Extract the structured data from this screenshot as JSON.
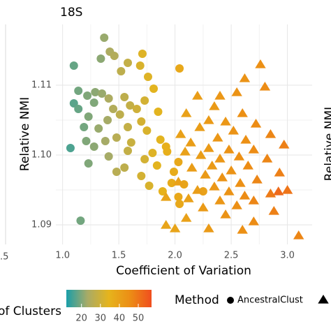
{
  "chart_data": {
    "type": "scatter",
    "title": "18S",
    "x_label": "Coefficient of Variation",
    "y_label": "Relative NMI",
    "xlim": [
      0.94,
      3.22
    ],
    "ylim": [
      1.0872,
      1.1187
    ],
    "xticks": [
      {
        "value": 1,
        "label": "1.0"
      },
      1.5,
      {
        "value": 2,
        "label": "2.0"
      },
      2.5,
      {
        "value": 3,
        "label": "3.0"
      }
    ],
    "yticks": [
      1.09,
      {
        "value": 1.1,
        "label": "1.10"
      },
      1.11
    ],
    "grid": true,
    "color_label": "of Clusters",
    "colorlim": [
      12,
      57
    ],
    "colorticks": [
      20,
      30,
      40,
      50
    ],
    "colormap": [
      "#1a9ea9",
      "#a9ab66",
      "#e6b41c",
      "#ec8d15",
      "#f04e1f"
    ],
    "legend_title": "Method",
    "left_panel_tick": ".5",
    "right_panel_label": "Relative NMI",
    "series": [
      {
        "name": "AncestralClust",
        "marker": "circle",
        "x": [
          1.37,
          1.42,
          1.46,
          1.71,
          1.69,
          1.1,
          1.34,
          1.58,
          1.52,
          1.76,
          2.04,
          1.81,
          1.14,
          1.29,
          1.35,
          1.22,
          1.41,
          1.55,
          1.6,
          1.73,
          1.1,
          1.14,
          1.28,
          1.45,
          1.66,
          1.85,
          1.51,
          1.23,
          1.4,
          1.7,
          1.19,
          1.32,
          1.58,
          1.75,
          1.48,
          1.21,
          1.38,
          1.87,
          1.61,
          1.07,
          1.28,
          1.58,
          1.93,
          1.41,
          1.73,
          1.23,
          1.55,
          1.84,
          2.03,
          1.99,
          1.7,
          1.48,
          1.97,
          1.77,
          2.08,
          1.89,
          2.03,
          2.25,
          2.04,
          1.16,
          1.92,
          1.8
        ],
        "y": [
          1.1168,
          1.1148,
          1.1142,
          1.1145,
          1.1128,
          1.1128,
          1.1138,
          1.1132,
          1.112,
          1.1112,
          1.1124,
          1.1095,
          1.1092,
          1.109,
          1.1088,
          1.1085,
          1.1081,
          1.1083,
          1.1071,
          1.1078,
          1.1074,
          1.1066,
          1.1075,
          1.1066,
          1.1066,
          1.1062,
          1.1058,
          1.1055,
          1.105,
          1.1048,
          1.104,
          1.1038,
          1.104,
          1.1035,
          1.1025,
          1.102,
          1.102,
          1.1022,
          1.1018,
          1.101,
          1.1012,
          1.1006,
          1.1005,
          1.0998,
          1.0994,
          1.0988,
          1.0982,
          1.0985,
          1.099,
          1.0976,
          1.097,
          1.0976,
          1.096,
          1.0956,
          1.0958,
          1.0948,
          1.094,
          1.0948,
          1.093,
          1.0906,
          1.1012,
          1.1003
        ],
        "clusters": [
          22,
          24,
          25,
          33,
          32,
          18,
          21,
          28,
          27,
          33,
          38,
          34,
          19,
          21,
          22,
          20,
          24,
          27,
          28,
          31,
          17,
          18,
          20,
          25,
          30,
          34,
          27,
          20,
          23,
          31,
          19,
          22,
          28,
          32,
          26,
          20,
          23,
          34,
          29,
          16,
          21,
          28,
          36,
          23,
          31,
          20,
          27,
          34,
          38,
          37,
          31,
          26,
          37,
          32,
          39,
          35,
          38,
          40,
          38,
          19,
          36,
          33
        ]
      },
      {
        "marker": "triangle",
        "x": [
          2.76,
          2.62,
          2.8,
          2.2,
          2.55,
          2.4,
          2.35,
          2.1,
          2.6,
          2.3,
          2.45,
          2.72,
          2.22,
          2.52,
          2.85,
          2.05,
          2.38,
          2.63,
          2.14,
          2.97,
          2.3,
          2.48,
          2.7,
          2.09,
          2.23,
          2.57,
          2.4,
          2.82,
          2.33,
          2.65,
          2.15,
          2.5,
          2.93,
          2.27,
          2.42,
          2.73,
          2.03,
          2.58,
          2.35,
          3.0,
          2.2,
          2.48,
          2.85,
          2.62,
          1.92,
          2.12,
          2.4,
          2.7,
          2.55,
          2.25,
          2.88,
          2.45,
          2.1,
          2.7,
          1.92,
          2.3,
          2.6,
          3.1,
          2.0,
          2.92
        ],
        "y": [
          1.113,
          1.111,
          1.1098,
          1.1085,
          1.109,
          1.1085,
          1.107,
          1.106,
          1.106,
          1.105,
          1.1048,
          1.1045,
          1.104,
          1.1035,
          1.103,
          1.103,
          1.1025,
          1.1022,
          1.1018,
          1.1015,
          1.101,
          1.1008,
          1.1008,
          1.1005,
          1.1,
          1.0998,
          1.0995,
          1.0995,
          1.0985,
          1.0985,
          1.0982,
          1.0978,
          1.0975,
          1.0972,
          1.0968,
          1.0965,
          1.0962,
          1.096,
          1.0955,
          1.095,
          1.095,
          1.0948,
          1.0945,
          1.0942,
          1.094,
          1.0938,
          1.0935,
          1.0935,
          1.0928,
          1.0925,
          1.092,
          1.0915,
          1.091,
          1.0905,
          1.09,
          1.0895,
          1.0893,
          1.0885,
          1.0895,
          1.0948
        ],
        "clusters": [
          45,
          44,
          46,
          41,
          44,
          43,
          42,
          40,
          45,
          42,
          43,
          46,
          41,
          44,
          47,
          40,
          43,
          45,
          41,
          48,
          42,
          44,
          46,
          40,
          41,
          45,
          43,
          47,
          42,
          46,
          41,
          44,
          48,
          42,
          44,
          47,
          40,
          45,
          43,
          50,
          41,
          44,
          49,
          46,
          39,
          40,
          43,
          47,
          45,
          42,
          48,
          44,
          40,
          46,
          39,
          42,
          45,
          47,
          39,
          52
        ]
      }
    ]
  }
}
